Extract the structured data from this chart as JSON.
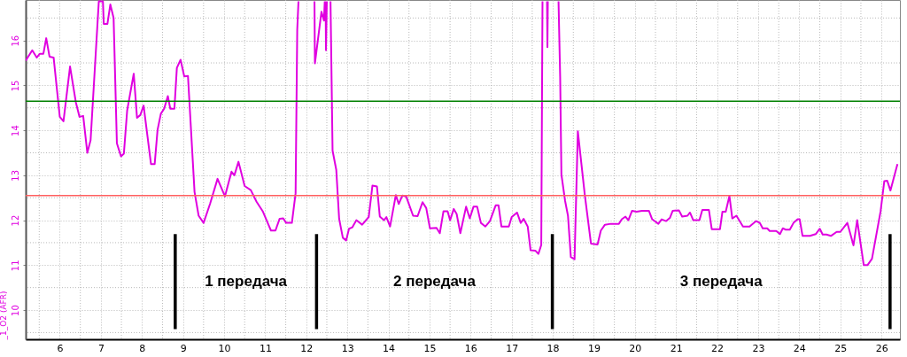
{
  "chart_data": {
    "type": "line",
    "ylabel": "_1_O2 (AFR)",
    "xlim": [
      5.17,
      26.45
    ],
    "ylim": [
      9.35,
      16.9
    ],
    "xticks": [
      {
        "value": 5.5,
        "label": null
      },
      6,
      {
        "value": 6.5,
        "label": null
      },
      7,
      {
        "value": 7.5,
        "label": null
      },
      8,
      {
        "value": 8.5,
        "label": null
      },
      9,
      {
        "value": 9.5,
        "label": null
      },
      10,
      {
        "value": 10.5,
        "label": null
      },
      11,
      {
        "value": 11.5,
        "label": null
      },
      12,
      {
        "value": 12.5,
        "label": null
      },
      13,
      {
        "value": 13.5,
        "label": null
      },
      14,
      {
        "value": 14.5,
        "label": null
      },
      15,
      {
        "value": 15.5,
        "label": null
      },
      16,
      {
        "value": 16.5,
        "label": null
      },
      17,
      {
        "value": 17.5,
        "label": null
      },
      18,
      {
        "value": 18.5,
        "label": null
      },
      19,
      {
        "value": 19.5,
        "label": null
      },
      20,
      {
        "value": 20.5,
        "label": null
      },
      21,
      {
        "value": 21.5,
        "label": null
      },
      22,
      {
        "value": 22.5,
        "label": null
      },
      23,
      {
        "value": 23.5,
        "label": null
      },
      24,
      {
        "value": 24.5,
        "label": null
      },
      25,
      {
        "value": 25.5,
        "label": null
      },
      26
    ],
    "yticks": [
      {
        "value": 9.5,
        "label": null
      },
      10,
      {
        "value": 10.5,
        "label": null
      },
      11,
      {
        "value": 11.5,
        "label": null
      },
      12,
      {
        "value": 12.5,
        "label": null
      },
      13,
      {
        "value": 13.5,
        "label": null
      },
      14,
      {
        "value": 14.5,
        "label": null
      },
      15,
      {
        "value": 15.5,
        "label": null
      },
      16,
      {
        "value": 16.5,
        "label": null
      }
    ],
    "grid": true,
    "marker": "none",
    "line_style": "solid",
    "series": [
      {
        "color": "#e000e0",
        "x": [
          5.17,
          5.33,
          5.44,
          5.51,
          5.6,
          5.67,
          5.75,
          5.85,
          6.0,
          6.09,
          6.25,
          6.39,
          6.48,
          6.57,
          6.67,
          6.75,
          6.95,
          7.05,
          7.07,
          7.16,
          7.23,
          7.31,
          7.39,
          7.49,
          7.56,
          7.64,
          7.8,
          7.88,
          7.96,
          8.04,
          8.22,
          8.31,
          8.38,
          8.46,
          8.54,
          8.63,
          8.69,
          8.79,
          8.85,
          8.94,
          9.03,
          9.12,
          9.28,
          9.38,
          9.5,
          9.66,
          9.84,
          10.02,
          10.18,
          10.25,
          10.35,
          10.5,
          10.65,
          10.79,
          10.94,
          11.14,
          11.25,
          11.35,
          11.44,
          11.51,
          11.65,
          11.74,
          11.78,
          11.81,
          12.0,
          12.2,
          12.21,
          12.37,
          12.43,
          12.45,
          12.46,
          12.47,
          12.48,
          12.5,
          12.55,
          12.59,
          12.64,
          12.73,
          12.8,
          12.89,
          12.97,
          13.04,
          13.12,
          13.22,
          13.36,
          13.52,
          13.61,
          13.72,
          13.79,
          13.89,
          13.95,
          14.04,
          14.18,
          14.25,
          14.34,
          14.43,
          14.6,
          14.71,
          14.83,
          14.92,
          15.01,
          15.17,
          15.25,
          15.34,
          15.44,
          15.5,
          15.59,
          15.66,
          15.75,
          15.89,
          15.98,
          16.07,
          16.16,
          16.25,
          16.36,
          16.47,
          16.61,
          16.68,
          16.75,
          16.93,
          17.0,
          17.13,
          17.22,
          17.29,
          17.39,
          17.46,
          17.58,
          17.65,
          17.72,
          17.75,
          17.8,
          17.86,
          17.87,
          17.88,
          18.0,
          18.14,
          18.18,
          18.21,
          18.3,
          18.37,
          18.44,
          18.53,
          18.59,
          18.61,
          18.78,
          18.93,
          19.09,
          19.17,
          19.27,
          19.41,
          19.61,
          19.68,
          19.77,
          19.84,
          19.93,
          20.04,
          20.17,
          20.34,
          20.42,
          20.57,
          20.65,
          20.76,
          20.85,
          20.92,
          21.07,
          21.15,
          21.28,
          21.34,
          21.42,
          21.57,
          21.64,
          21.8,
          21.87,
          22.07,
          22.13,
          22.21,
          22.3,
          22.37,
          22.47,
          22.63,
          22.79,
          22.95,
          23.04,
          23.11,
          23.22,
          23.28,
          23.44,
          23.53,
          23.6,
          23.67,
          23.77,
          23.86,
          23.96,
          24.01,
          24.08,
          24.26,
          24.4,
          24.5,
          24.57,
          24.66,
          24.77,
          24.91,
          25.0,
          25.17,
          25.32,
          25.41,
          25.57,
          25.66,
          25.77,
          25.98,
          26.07,
          26.14,
          26.22,
          26.39
        ],
        "values": [
          15.55,
          15.78,
          15.62,
          15.7,
          15.7,
          16.05,
          15.64,
          15.62,
          14.3,
          14.2,
          15.42,
          14.63,
          14.3,
          14.32,
          13.5,
          13.78,
          16.87,
          16.87,
          16.37,
          16.37,
          16.8,
          16.5,
          13.71,
          13.42,
          13.48,
          14.44,
          15.26,
          14.28,
          14.34,
          14.55,
          13.25,
          13.25,
          14.01,
          14.37,
          14.48,
          14.76,
          14.48,
          14.48,
          15.39,
          15.57,
          15.2,
          15.21,
          12.63,
          12.1,
          11.94,
          12.37,
          12.92,
          12.53,
          13.08,
          13.0,
          13.3,
          12.76,
          12.67,
          12.41,
          12.2,
          11.77,
          11.77,
          12.03,
          12.04,
          11.94,
          11.94,
          12.6,
          16.24,
          16.87,
          null,
          16.87,
          15.49,
          16.64,
          16.44,
          16.87,
          null,
          16.87,
          15.78,
          16.87,
          null,
          16.87,
          13.55,
          13.12,
          12.03,
          11.61,
          11.55,
          11.81,
          11.84,
          12.0,
          11.9,
          12.07,
          12.77,
          12.75,
          12.08,
          12.0,
          12.07,
          11.86,
          12.56,
          12.36,
          12.55,
          12.53,
          12.1,
          12.09,
          12.4,
          12.27,
          11.82,
          11.83,
          11.71,
          12.2,
          12.2,
          12.0,
          12.25,
          12.14,
          11.71,
          12.3,
          12.04,
          12.3,
          12.3,
          11.94,
          11.86,
          11.98,
          12.33,
          12.33,
          11.86,
          11.86,
          12.07,
          12.17,
          11.94,
          12.03,
          11.86,
          11.33,
          11.32,
          11.25,
          11.45,
          16.87,
          null,
          16.87,
          15.85,
          16.87,
          null,
          16.87,
          15.19,
          13.02,
          12.43,
          12.1,
          11.18,
          11.13,
          13.25,
          13.98,
          12.56,
          11.48,
          11.46,
          11.77,
          11.9,
          11.92,
          11.92,
          12.02,
          12.08,
          12.0,
          12.21,
          12.19,
          12.21,
          12.21,
          12.02,
          11.92,
          12.02,
          11.98,
          12.05,
          12.21,
          12.22,
          12.08,
          12.1,
          12.17,
          12.0,
          12.0,
          12.23,
          12.23,
          11.8,
          11.8,
          12.19,
          12.19,
          12.54,
          12.04,
          12.1,
          11.86,
          11.86,
          11.98,
          11.94,
          11.82,
          11.82,
          11.76,
          11.76,
          11.69,
          11.82,
          11.79,
          11.79,
          11.94,
          12.02,
          12.02,
          11.65,
          11.65,
          11.69,
          11.81,
          11.68,
          11.68,
          11.65,
          11.74,
          11.74,
          11.94,
          11.44,
          12.0,
          11.0,
          11.0,
          11.14,
          12.2,
          12.87,
          12.88,
          12.66,
          13.25
        ]
      }
    ],
    "ref_lines": [
      {
        "axis": "y",
        "value": 14.65,
        "color": "#008000"
      },
      {
        "axis": "y",
        "value": 12.55,
        "color": "#ff6060"
      },
      {
        "axis": "x",
        "value": 8.81,
        "color": "#000000"
      },
      {
        "axis": "x",
        "value": 12.25,
        "color": "#000000"
      },
      {
        "axis": "x",
        "value": 17.99,
        "color": "#000000"
      },
      {
        "axis": "x",
        "value": 26.21,
        "color": "#000000"
      }
    ],
    "annotations": [
      "1 передача",
      "2 передача",
      "3 передача"
    ]
  }
}
